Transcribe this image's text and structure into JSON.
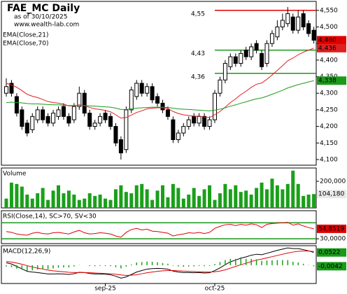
{
  "chart_data": [
    {
      "type": "candlestick",
      "title": "FAE_MC Daily",
      "subtitle": "as of 30/10/2025",
      "source": "www.wealth-lab.com",
      "categories": [
        null,
        null,
        null,
        null,
        null,
        null,
        null,
        null,
        null,
        null,
        null,
        null,
        null,
        null,
        null,
        null,
        null,
        null,
        null,
        "sep-25",
        null,
        null,
        null,
        null,
        null,
        null,
        null,
        null,
        null,
        null,
        null,
        null,
        null,
        null,
        null,
        null,
        null,
        null,
        null,
        null,
        "oct-25",
        null,
        null,
        null,
        null,
        null,
        null,
        null,
        null,
        null,
        null,
        null,
        null,
        null,
        null,
        null,
        null,
        null,
        null,
        null
      ],
      "open": [
        4300,
        4330,
        4290,
        4250,
        4210,
        4190,
        4220,
        4250,
        4230,
        4210,
        4230,
        4260,
        4230,
        4220,
        4260,
        4300,
        4240,
        4200,
        4210,
        4240,
        4230,
        4200,
        4160,
        4130,
        4250,
        4290,
        4330,
        4300,
        4320,
        4290,
        4270,
        4250,
        4220,
        4160,
        4180,
        4200,
        4230,
        4210,
        4230,
        4200,
        4220,
        4300,
        4340,
        4380,
        4410,
        4390,
        4430,
        4410,
        4450,
        4420,
        4390,
        4450,
        4470,
        4500,
        4510,
        4530,
        4490,
        4540,
        4510,
        4490
      ],
      "high": [
        4345,
        4340,
        4300,
        4260,
        4220,
        4240,
        4260,
        4260,
        4240,
        4250,
        4260,
        4270,
        4240,
        4270,
        4320,
        4310,
        4250,
        4220,
        4240,
        4250,
        4240,
        4210,
        4170,
        4260,
        4320,
        4340,
        4340,
        4330,
        4330,
        4300,
        4280,
        4260,
        4230,
        4190,
        4210,
        4230,
        4240,
        4240,
        4240,
        4230,
        4310,
        4350,
        4400,
        4420,
        4420,
        4430,
        4440,
        4450,
        4460,
        4430,
        4460,
        4490,
        4520,
        4540,
        4560,
        4540,
        4550,
        4550,
        4520,
        4500
      ],
      "low": [
        4290,
        4290,
        4230,
        4190,
        4170,
        4180,
        4210,
        4210,
        4200,
        4200,
        4220,
        4220,
        4200,
        4210,
        4250,
        4230,
        4190,
        4190,
        4200,
        4210,
        4190,
        4140,
        4100,
        4120,
        4240,
        4280,
        4290,
        4290,
        4270,
        4260,
        4240,
        4220,
        4150,
        4150,
        4170,
        4190,
        4200,
        4200,
        4190,
        4190,
        4210,
        4290,
        4330,
        4370,
        4380,
        4380,
        4400,
        4400,
        4420,
        4370,
        4380,
        4440,
        4460,
        4490,
        4500,
        4480,
        4480,
        4490,
        4470,
        4450
      ],
      "close": [
        4320,
        4300,
        4240,
        4200,
        4180,
        4230,
        4250,
        4220,
        4210,
        4240,
        4250,
        4230,
        4210,
        4260,
        4300,
        4240,
        4200,
        4210,
        4230,
        4220,
        4200,
        4150,
        4120,
        4250,
        4310,
        4330,
        4300,
        4320,
        4280,
        4270,
        4250,
        4230,
        4160,
        4180,
        4200,
        4220,
        4210,
        4230,
        4200,
        4220,
        4300,
        4340,
        4390,
        4410,
        4390,
        4420,
        4410,
        4440,
        4430,
        4380,
        4450,
        4480,
        4500,
        4520,
        4540,
        4490,
        4530,
        4500,
        4480,
        4460
      ],
      "last_label": "4,460",
      "label_color": "#e00000",
      "series": [
        {
          "name": "EMA(Close,21)",
          "color": "#e02020",
          "last_label": "4,436",
          "values": [
            4330,
            4325,
            4318,
            4308,
            4297,
            4291,
            4287,
            4281,
            4275,
            4272,
            4270,
            4267,
            4262,
            4262,
            4265,
            4263,
            4257,
            4253,
            4251,
            4248,
            4244,
            4235,
            4225,
            4227,
            4234,
            4242,
            4247,
            4253,
            4255,
            4256,
            4256,
            4254,
            4245,
            4239,
            4235,
            4233,
            4231,
            4231,
            4228,
            4227,
            4235,
            4245,
            4258,
            4272,
            4283,
            4296,
            4306,
            4318,
            4327,
            4331,
            4342,
            4355,
            4369,
            4383,
            4398,
            4406,
            4416,
            4424,
            4430,
            4436
          ]
        },
        {
          "name": "EMA(Close,70)",
          "color": "#1a9a1a",
          "last_label": "4,338",
          "values": [
            4272,
            4273,
            4272,
            4271,
            4269,
            4268,
            4268,
            4267,
            4266,
            4265,
            4265,
            4264,
            4263,
            4263,
            4264,
            4263,
            4262,
            4261,
            4260,
            4259,
            4258,
            4255,
            4251,
            4251,
            4253,
            4255,
            4256,
            4257,
            4258,
            4258,
            4258,
            4257,
            4255,
            4253,
            4252,
            4251,
            4250,
            4249,
            4248,
            4247,
            4249,
            4252,
            4256,
            4261,
            4265,
            4270,
            4274,
            4279,
            4283,
            4286,
            4291,
            4297,
            4303,
            4309,
            4316,
            4321,
            4326,
            4330,
            4334,
            4338
          ]
        }
      ],
      "levels": [
        {
          "value": 4550,
          "label": "4,55",
          "color": "#e00000"
        },
        {
          "value": 4430,
          "label": "4,43",
          "color": "#1a9a1a"
        },
        {
          "value": 4360,
          "label": "4,36",
          "color": "#1a9a1a"
        }
      ],
      "ylim": [
        4083,
        4577
      ],
      "yticks": [
        {
          "value": 4100,
          "label": "4,100"
        },
        {
          "value": 4150,
          "label": "4,150"
        },
        {
          "value": 4200,
          "label": "4,200"
        },
        {
          "value": 4250,
          "label": "4,250"
        },
        {
          "value": 4300,
          "label": "4,300"
        },
        {
          "value": 4350,
          "label": "4,350"
        },
        {
          "value": 4400,
          "label": "4,400"
        },
        {
          "value": 4450,
          "label": "4,450"
        },
        {
          "value": 4500,
          "label": "4,500"
        },
        {
          "value": 4550,
          "label": "4,550"
        }
      ]
    },
    {
      "type": "bar",
      "title": "Volume",
      "color": "#1aa01a",
      "last_label": "104,180",
      "label_color": "#e8e8e8",
      "values": [
        70000,
        190000,
        180000,
        160000,
        100000,
        70000,
        110000,
        150000,
        60000,
        130000,
        170000,
        110000,
        130000,
        100000,
        60000,
        70000,
        110000,
        90000,
        100000,
        70000,
        60000,
        140000,
        170000,
        120000,
        110000,
        170000,
        180000,
        140000,
        60000,
        130000,
        170000,
        80000,
        180000,
        150000,
        70000,
        100000,
        150000,
        90000,
        140000,
        170000,
        60000,
        110000,
        180000,
        140000,
        170000,
        120000,
        130000,
        100000,
        150000,
        190000,
        140000,
        220000,
        170000,
        140000,
        180000,
        280000,
        180000,
        90000,
        100000,
        104180
      ],
      "ylim": [
        0,
        300000
      ],
      "yticks": [
        {
          "value": 200000,
          "label": "200,000"
        }
      ]
    },
    {
      "type": "line",
      "title": "RSI(Close,14), SC>70, SV<30",
      "series": [
        {
          "color": "#e00000",
          "last_label": "54,8519",
          "values": [
            48,
            46,
            42,
            40,
            39,
            44,
            46,
            43,
            42,
            45,
            46,
            44,
            42,
            47,
            51,
            45,
            42,
            43,
            45,
            44,
            42,
            37,
            34,
            46,
            53,
            56,
            52,
            54,
            49,
            48,
            46,
            44,
            37,
            40,
            42,
            45,
            44,
            46,
            43,
            46,
            56,
            61,
            65,
            66,
            63,
            66,
            64,
            67,
            65,
            58,
            66,
            68,
            69,
            70,
            71,
            64,
            67,
            62,
            58,
            54.8519
          ]
        }
      ],
      "levels": [
        {
          "value": 70,
          "color": "#1a9a1a"
        },
        {
          "value": 30,
          "color": "#1a9a1a"
        }
      ],
      "ylim": [
        18,
        100
      ],
      "yticks": [
        {
          "value": 30,
          "label": "30,0000"
        }
      ]
    },
    {
      "type": "line",
      "title": "MACD(12,26,9)",
      "series": [
        {
          "color": "#000000",
          "last_label": "0,0522",
          "label_color": "#1a9a1a",
          "values": [
            0.01,
            0.005,
            -0.005,
            -0.015,
            -0.025,
            -0.028,
            -0.03,
            -0.033,
            -0.036,
            -0.036,
            -0.035,
            -0.036,
            -0.038,
            -0.035,
            -0.029,
            -0.03,
            -0.034,
            -0.036,
            -0.036,
            -0.037,
            -0.039,
            -0.045,
            -0.053,
            -0.048,
            -0.038,
            -0.028,
            -0.022,
            -0.016,
            -0.014,
            -0.013,
            -0.014,
            -0.016,
            -0.024,
            -0.028,
            -0.03,
            -0.03,
            -0.031,
            -0.03,
            -0.032,
            -0.031,
            -0.022,
            -0.011,
            0.002,
            0.014,
            0.021,
            0.029,
            0.034,
            0.041,
            0.045,
            0.043,
            0.049,
            0.055,
            0.061,
            0.066,
            0.071,
            0.068,
            0.068,
            0.064,
            0.059,
            0.0522
          ]
        },
        {
          "color": "#e00000",
          "values": [
            0.015,
            0.013,
            0.009,
            0.004,
            -0.002,
            -0.007,
            -0.012,
            -0.016,
            -0.02,
            -0.023,
            -0.025,
            -0.027,
            -0.029,
            -0.03,
            -0.03,
            -0.03,
            -0.031,
            -0.032,
            -0.033,
            -0.034,
            -0.035,
            -0.037,
            -0.04,
            -0.042,
            -0.041,
            -0.039,
            -0.035,
            -0.031,
            -0.028,
            -0.025,
            -0.023,
            -0.022,
            -0.022,
            -0.023,
            -0.024,
            -0.025,
            -0.026,
            -0.027,
            -0.028,
            -0.028,
            -0.027,
            -0.024,
            -0.019,
            -0.012,
            -0.005,
            0.002,
            0.008,
            0.015,
            0.021,
            0.025,
            0.03,
            0.035,
            0.04,
            0.045,
            0.05,
            0.054,
            0.057,
            0.058,
            0.058,
            0.0564
          ]
        },
        {
          "color": "#1aa01a",
          "style": "histogram",
          "last_label": "-0,0042",
          "label_color": "#1a9a1a",
          "values": [
            -0.005,
            -0.008,
            -0.014,
            -0.019,
            -0.023,
            -0.021,
            -0.018,
            -0.017,
            -0.016,
            -0.013,
            -0.01,
            -0.009,
            -0.009,
            -0.005,
            0.001,
            0,
            -0.003,
            -0.004,
            -0.003,
            -0.003,
            -0.004,
            -0.008,
            -0.013,
            -0.006,
            0.003,
            0.011,
            0.013,
            0.015,
            0.014,
            0.012,
            0.009,
            0.006,
            -0.002,
            -0.005,
            -0.006,
            -0.005,
            -0.005,
            -0.003,
            -0.004,
            -0.003,
            0.005,
            0.013,
            0.021,
            0.026,
            0.026,
            0.027,
            0.026,
            0.026,
            0.024,
            0.018,
            0.019,
            0.02,
            0.021,
            0.021,
            0.021,
            0.014,
            0.011,
            0.006,
            0.001,
            -0.0042
          ]
        }
      ],
      "ylim": [
        -0.075,
        0.08
      ]
    }
  ]
}
